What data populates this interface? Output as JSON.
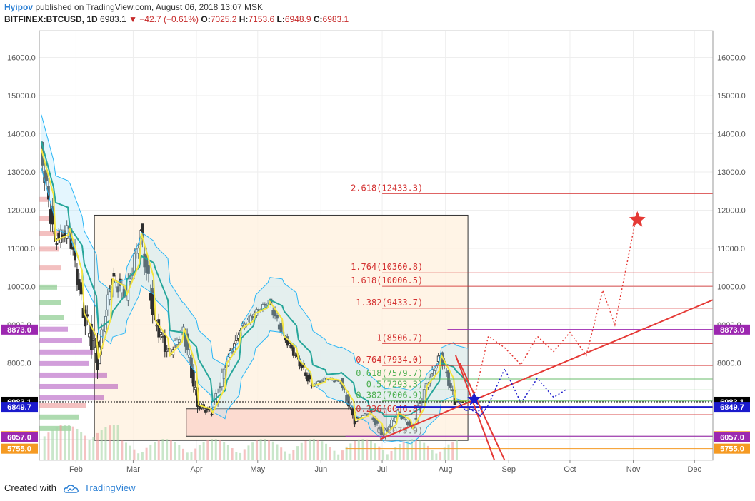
{
  "header": {
    "author": "Hyipov",
    "published": " published on TradingView.com, August 06, 2018 13:07 MSK",
    "symbol": "BITFINEX:BTCUSD, 1D",
    "last": "6983.1",
    "change": "−42.7 (−0.61%)",
    "o_label": "O:",
    "o_val": "7025.2",
    "h_label": "H:",
    "h_val": "7153.6",
    "l_label": "L:",
    "l_val": "6948.9",
    "c_label": "C:",
    "c_val": "6983.1"
  },
  "footer": {
    "created": "Created with",
    "brand": "TradingView"
  },
  "colors": {
    "fib": "#d32f2f",
    "fib_green": "#4caf50",
    "purple": "#9c27b0",
    "blue": "#1a1acc",
    "orange": "#f59a23",
    "black": "#000000"
  },
  "chart_data": {
    "type": "candlestick",
    "y_range": [
      5450,
      16700
    ],
    "y_ticks": [
      {
        "v": 6000,
        "label": "6000.0"
      },
      {
        "v": 7000,
        "label": "7000.0"
      },
      {
        "v": 8000,
        "label": "8000.0"
      },
      {
        "v": 9000,
        "label": "9000.0"
      },
      {
        "v": 10000,
        "label": "10000.0"
      },
      {
        "v": 11000,
        "label": "11000.0"
      },
      {
        "v": 12000,
        "label": "12000.0"
      },
      {
        "v": 13000,
        "label": "13000.0"
      },
      {
        "v": 14000,
        "label": "14000.0"
      },
      {
        "v": 15000,
        "label": "15000.0"
      },
      {
        "v": 16000,
        "label": "16000.0"
      }
    ],
    "x_start": "2018-01-14",
    "x_end": "2018-12-10",
    "x_ticks": [
      {
        "date": "2018-02-01",
        "label": "Feb"
      },
      {
        "date": "2018-03-01",
        "label": "Mar"
      },
      {
        "date": "2018-04-01",
        "label": "Apr"
      },
      {
        "date": "2018-05-01",
        "label": "May"
      },
      {
        "date": "2018-06-01",
        "label": "Jun"
      },
      {
        "date": "2018-07-01",
        "label": "Jul"
      },
      {
        "date": "2018-08-01",
        "label": "Aug"
      },
      {
        "date": "2018-09-01",
        "label": "Sep"
      },
      {
        "date": "2018-10-01",
        "label": "Oct"
      },
      {
        "date": "2018-11-01",
        "label": "Nov"
      },
      {
        "date": "2018-12-01",
        "label": "Dec"
      }
    ],
    "fib_levels": [
      {
        "label": "2.618(12433.3)",
        "v": 12433.3,
        "color": "#d32f2f"
      },
      {
        "label": "1.764(10360.8)",
        "v": 10360.8,
        "color": "#d32f2f"
      },
      {
        "label": "1.618(10006.5)",
        "v": 10006.5,
        "color": "#d32f2f"
      },
      {
        "label": "1.382(9433.7)",
        "v": 9433.7,
        "color": "#d32f2f"
      },
      {
        "label": "1(8506.7)",
        "v": 8506.7,
        "color": "#d32f2f"
      },
      {
        "label": "0.764(7934.0)",
        "v": 7934.0,
        "color": "#d32f2f"
      },
      {
        "label": "0.618(7579.7)",
        "v": 7579.7,
        "color": "#4caf50"
      },
      {
        "label": "0.5(7293.3)",
        "v": 7293.3,
        "color": "#4caf50"
      },
      {
        "label": "0.382(7006.9)",
        "v": 7006.9,
        "color": "#4caf50"
      },
      {
        "label": "0.236(6646.8)",
        "v": 6646.8,
        "color": "#d32f2f"
      },
      {
        "label": "0(6079.9)",
        "v": 6079.9,
        "color": "#888888"
      }
    ],
    "price_badges": [
      {
        "label": "8873.0",
        "v": 8873.0,
        "color": "#9c27b0"
      },
      {
        "label": "6983.1",
        "v": 6983.1,
        "color": "#000000"
      },
      {
        "label": "6849.7",
        "v": 6849.7,
        "color": "#1a1acc"
      },
      {
        "label": "6079.9",
        "v": 6079.9,
        "color": "#f59a23"
      },
      {
        "label": "6057.0",
        "v": 6057.0,
        "color": "#9c27b0"
      },
      {
        "label": "5755.0",
        "v": 5755.0,
        "color": "#f59a23"
      }
    ],
    "candles_weekly": [
      {
        "d": "2018-01-15",
        "o": 13600,
        "h": 13800,
        "l": 10800,
        "c": 11200
      },
      {
        "d": "2018-01-22",
        "o": 11200,
        "h": 12200,
        "l": 10200,
        "c": 11500
      },
      {
        "d": "2018-01-29",
        "o": 11500,
        "h": 11700,
        "l": 9200,
        "c": 9300
      },
      {
        "d": "2018-02-05",
        "o": 9300,
        "h": 9500,
        "l": 6000,
        "c": 8100
      },
      {
        "d": "2018-02-12",
        "o": 8100,
        "h": 10300,
        "l": 8000,
        "c": 10200
      },
      {
        "d": "2018-02-19",
        "o": 10200,
        "h": 11800,
        "l": 9700,
        "c": 9800
      },
      {
        "d": "2018-02-26",
        "o": 9800,
        "h": 11500,
        "l": 9400,
        "c": 11400
      },
      {
        "d": "2018-03-05",
        "o": 11400,
        "h": 11600,
        "l": 8400,
        "c": 9100
      },
      {
        "d": "2018-03-12",
        "o": 9100,
        "h": 9800,
        "l": 7700,
        "c": 8200
      },
      {
        "d": "2018-03-19",
        "o": 8200,
        "h": 9100,
        "l": 8000,
        "c": 8900
      },
      {
        "d": "2018-03-26",
        "o": 8900,
        "h": 8900,
        "l": 6600,
        "c": 6900
      },
      {
        "d": "2018-04-02",
        "o": 6900,
        "h": 7500,
        "l": 6600,
        "c": 6700
      },
      {
        "d": "2018-04-09",
        "o": 6700,
        "h": 8200,
        "l": 6600,
        "c": 8000
      },
      {
        "d": "2018-04-16",
        "o": 8000,
        "h": 9000,
        "l": 7900,
        "c": 8900
      },
      {
        "d": "2018-04-23",
        "o": 8900,
        "h": 9700,
        "l": 8800,
        "c": 9300
      },
      {
        "d": "2018-04-30",
        "o": 9300,
        "h": 9900,
        "l": 9100,
        "c": 9600
      },
      {
        "d": "2018-05-07",
        "o": 9600,
        "h": 9700,
        "l": 8500,
        "c": 8700
      },
      {
        "d": "2018-05-14",
        "o": 8700,
        "h": 8900,
        "l": 7900,
        "c": 8100
      },
      {
        "d": "2018-05-21",
        "o": 8100,
        "h": 8400,
        "l": 7200,
        "c": 7400
      },
      {
        "d": "2018-05-28",
        "o": 7400,
        "h": 7800,
        "l": 7300,
        "c": 7600
      },
      {
        "d": "2018-06-04",
        "o": 7600,
        "h": 7800,
        "l": 7400,
        "c": 7500
      },
      {
        "d": "2018-06-11",
        "o": 7500,
        "h": 7600,
        "l": 6300,
        "c": 6500
      },
      {
        "d": "2018-06-18",
        "o": 6500,
        "h": 6800,
        "l": 6400,
        "c": 6700
      },
      {
        "d": "2018-06-25",
        "o": 6700,
        "h": 6700,
        "l": 5800,
        "c": 6100
      },
      {
        "d": "2018-07-02",
        "o": 6100,
        "h": 6800,
        "l": 6000,
        "c": 6700
      },
      {
        "d": "2018-07-09",
        "o": 6700,
        "h": 6700,
        "l": 6100,
        "c": 6300
      },
      {
        "d": "2018-07-16",
        "o": 6300,
        "h": 7600,
        "l": 6200,
        "c": 7400
      },
      {
        "d": "2018-07-23",
        "o": 7400,
        "h": 8500,
        "l": 7300,
        "c": 8200
      },
      {
        "d": "2018-07-30",
        "o": 8200,
        "h": 8300,
        "l": 6900,
        "c": 7000
      },
      {
        "d": "2018-08-06",
        "o": 7025,
        "h": 7150,
        "l": 6950,
        "c": 6983
      }
    ]
  }
}
